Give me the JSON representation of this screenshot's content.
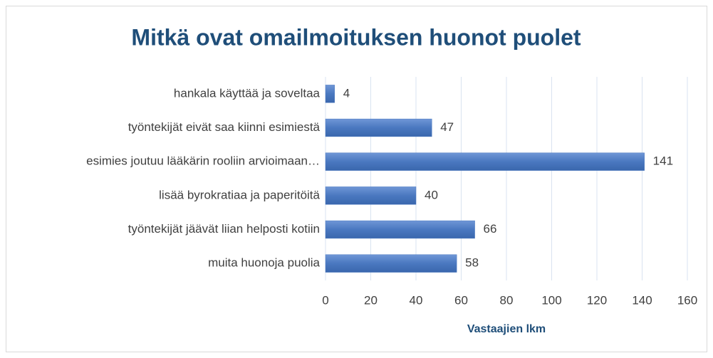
{
  "chart_data": {
    "type": "bar",
    "orientation": "horizontal",
    "title": "Mitkä ovat omailmoituksen huonot puolet",
    "x_label": "Vastaajien lkm",
    "categories": [
      "hankala käyttää ja soveltaa",
      "työntekijät eivät saa kiinni esimiestä",
      "esimies joutuu lääkärin rooliin arvioimaan…",
      "lisää byrokratiaa ja paperitöitä",
      "työntekijät jäävät liian helposti kotiin",
      "muita huonoja puolia"
    ],
    "values": [
      4,
      47,
      141,
      40,
      66,
      58
    ],
    "color": "#4a78c0",
    "xlim": [
      0,
      160
    ],
    "xticks": [
      0,
      20,
      40,
      60,
      80,
      100,
      120,
      140,
      160
    ],
    "grid": true
  }
}
